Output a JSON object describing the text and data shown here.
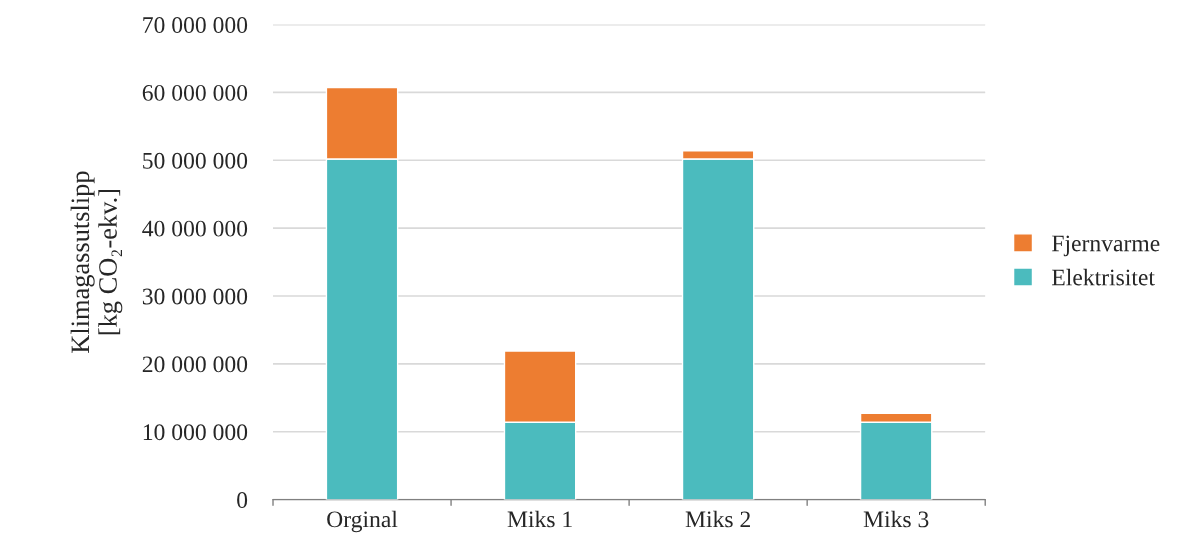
{
  "chart_data": {
    "type": "bar",
    "stacked": true,
    "ylabel": "Klimagassutslipp\n[kg CO₂-ekv.]",
    "categories": [
      "Orginal",
      "Miks 1",
      "Miks 2",
      "Miks 3"
    ],
    "series": [
      {
        "name": "Elektrisitet",
        "color": "#4bbbbe",
        "values": [
          50200000,
          11400000,
          50200000,
          11400000
        ]
      },
      {
        "name": "Fjernvarme",
        "color": "#ed7d31",
        "values": [
          10500000,
          10500000,
          1200000,
          1300000
        ]
      }
    ],
    "ylim": [
      0,
      70000000
    ],
    "yticks": [
      {
        "value": 0,
        "label": "0"
      },
      {
        "value": 10000000,
        "label": "10 000 000"
      },
      {
        "value": 20000000,
        "label": "20 000 000"
      },
      {
        "value": 30000000,
        "label": "30 000 000"
      },
      {
        "value": 40000000,
        "label": "40 000 000"
      },
      {
        "value": 50000000,
        "label": "50 000 000"
      },
      {
        "value": 60000000,
        "label": "60 000 000"
      },
      {
        "value": 70000000,
        "label": "70 000 000"
      }
    ],
    "grid": "y",
    "legend": "right"
  }
}
